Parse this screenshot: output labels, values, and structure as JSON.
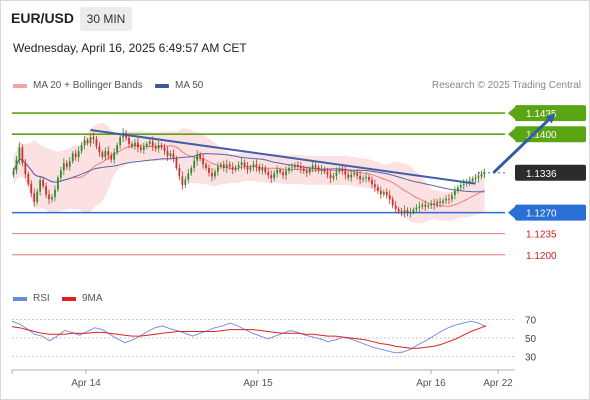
{
  "header": {
    "symbol": "EUR/USD",
    "timeframe": "30 MIN",
    "datetime": "Wednesday, April 16, 2025 6:49:57 AM CET"
  },
  "legend": {
    "ma20_label": "MA 20 + Bollinger Bands",
    "ma50_label": "MA 50",
    "credit": "Research © 2025 Trading Central",
    "rsi_label": "RSI",
    "ma9_label": "9MA"
  },
  "colors": {
    "up": "#2f8a2f",
    "down": "#c9302c",
    "bollinger_fill": "#fadcdc",
    "ma20": "#ef7f7f",
    "ma50": "#5a63a8",
    "trendline": "#3f5fa8",
    "resistance": "#5aa514",
    "support_primary": "#2a6fd6",
    "support_secondary": "#e06666",
    "arrow": "#2f5fa0",
    "rsi": "#6b8be0",
    "rsi_ma": "#e02020"
  },
  "chart_data": {
    "type": "candlestick",
    "instrument": "EUR/USD",
    "timeframe": "30 MIN",
    "x_ticks": [
      "Apr 14",
      "Apr 15",
      "Apr 16",
      "Apr 22"
    ],
    "price_ylim": [
      1.115,
      1.1465
    ],
    "levels": [
      {
        "label": "1.1435",
        "value": 1.1435,
        "kind": "resistance"
      },
      {
        "label": "1.1400",
        "value": 1.14,
        "kind": "resistance"
      },
      {
        "label": "1.1336",
        "value": 1.1336,
        "kind": "current"
      },
      {
        "label": "1.1270",
        "value": 1.127,
        "kind": "support-key"
      },
      {
        "label": "1.1235",
        "value": 1.1235,
        "kind": "support"
      },
      {
        "label": "1.1200",
        "value": 1.12,
        "kind": "support"
      }
    ],
    "trendline": {
      "from": [
        26,
        1.1407
      ],
      "to": [
        156,
        1.1318
      ]
    },
    "projection_arrow": {
      "from": [
        162,
        1.1336
      ],
      "to": [
        183,
        1.1435
      ]
    },
    "close_series": [
      1.134,
      1.1358,
      1.1378,
      1.1352,
      1.1334,
      1.1318,
      1.1302,
      1.1288,
      1.1305,
      1.1324,
      1.1314,
      1.13,
      1.1292,
      1.1296,
      1.1308,
      1.1328,
      1.134,
      1.1352,
      1.1346,
      1.1355,
      1.1368,
      1.1362,
      1.1372,
      1.1382,
      1.139,
      1.1385,
      1.1395,
      1.1392,
      1.138,
      1.137,
      1.1362,
      1.1372,
      1.1365,
      1.1358,
      1.137,
      1.1382,
      1.1395,
      1.1402,
      1.1394,
      1.1384,
      1.138,
      1.1386,
      1.1378,
      1.1374,
      1.1379,
      1.1384,
      1.1388,
      1.138,
      1.1376,
      1.1382,
      1.1378,
      1.1372,
      1.1364,
      1.1368,
      1.136,
      1.1344,
      1.133,
      1.1316,
      1.1325,
      1.1335,
      1.1344,
      1.1356,
      1.1366,
      1.136,
      1.135,
      1.1344,
      1.1336,
      1.133,
      1.1338,
      1.1346,
      1.135,
      1.1344,
      1.135,
      1.1346,
      1.1341,
      1.1345,
      1.1349,
      1.1353,
      1.1347,
      1.1341,
      1.1345,
      1.135,
      1.1346,
      1.134,
      1.1344,
      1.1337,
      1.1332,
      1.1327,
      1.1335,
      1.1341,
      1.1337,
      1.1332,
      1.1339,
      1.1344,
      1.1345,
      1.1349,
      1.1346,
      1.1343,
      1.1339,
      1.1336,
      1.1343,
      1.1348,
      1.1345,
      1.134,
      1.1342,
      1.1338,
      1.1333,
      1.1327,
      1.1331,
      1.1338,
      1.1342,
      1.1339,
      1.1333,
      1.1328,
      1.1333,
      1.1336,
      1.1331,
      1.1325,
      1.1327,
      1.1329,
      1.1324,
      1.1317,
      1.1312,
      1.1306,
      1.13,
      1.1304,
      1.1299,
      1.1292,
      1.1282,
      1.1276,
      1.1272,
      1.127,
      1.1274,
      1.1269,
      1.1271,
      1.1275,
      1.1278,
      1.128,
      1.1283,
      1.128,
      1.1282,
      1.1285,
      1.1283,
      1.1288,
      1.1286,
      1.129,
      1.1293,
      1.1292,
      1.1299,
      1.1306,
      1.1312,
      1.1316,
      1.1318,
      1.1321,
      1.1323,
      1.1326,
      1.1328,
      1.133,
      1.1334,
      1.1336
    ],
    "rsi": {
      "levels": [
        70,
        50,
        30
      ],
      "ylim": [
        20,
        80
      ],
      "values": [
        68,
        65,
        60,
        54,
        52,
        47,
        52,
        58,
        56,
        53,
        57,
        61,
        59,
        54,
        49,
        45,
        48,
        52,
        57,
        61,
        63,
        60,
        58,
        55,
        52,
        55,
        58,
        61,
        63,
        66,
        63,
        59,
        55,
        52,
        49,
        52,
        55,
        58,
        56,
        53,
        51,
        49,
        46,
        48,
        51,
        49,
        46,
        43,
        40,
        38,
        36,
        34,
        35,
        38,
        43,
        47,
        52,
        57,
        61,
        64,
        66,
        68,
        66,
        62
      ],
      "ma9": [
        62,
        61,
        59,
        57,
        55,
        54,
        54,
        54,
        55,
        55,
        55,
        56,
        56,
        55,
        54,
        53,
        52,
        52,
        53,
        54,
        55,
        56,
        57,
        57,
        57,
        57,
        57,
        57,
        58,
        59,
        59,
        59,
        59,
        58,
        57,
        56,
        55,
        55,
        55,
        54,
        54,
        53,
        52,
        52,
        51,
        50,
        49,
        48,
        46,
        44,
        43,
        41,
        40,
        39,
        39,
        40,
        41,
        43,
        46,
        49,
        53,
        57,
        60,
        63
      ]
    }
  }
}
